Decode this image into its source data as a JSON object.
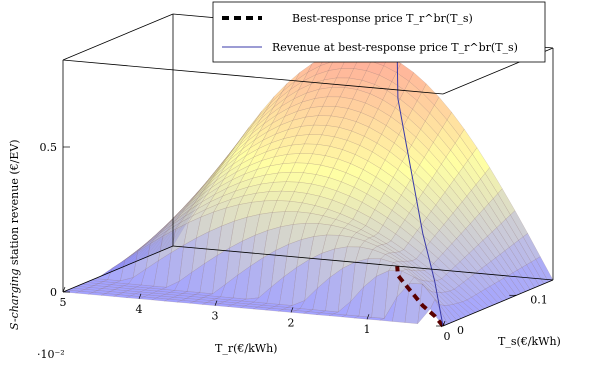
{
  "chart_data": {
    "type": "surface",
    "xlabel": "T_r(€/kWh)",
    "ylabel": "T_s(€/kWh)",
    "zlabel": "S-charging station revenue (€/EV)",
    "zlabel_italic_part": "S-charging",
    "zlabel_rest": " station revenue (€/EV)",
    "x_ticks": [
      "5",
      "4",
      "3",
      "2",
      "1",
      "0"
    ],
    "x_tick_values": [
      0.05,
      0.04,
      0.03,
      0.02,
      0.01,
      0
    ],
    "x_scale_label": "·10⁻²",
    "y_ticks": [
      "0",
      "0.1"
    ],
    "y_tick_values": [
      0,
      0.1
    ],
    "z_ticks": [
      "0",
      "0.5"
    ],
    "z_tick_values": [
      0,
      0.5
    ],
    "xlim": [
      0,
      0.05
    ],
    "ylim": [
      0,
      0.15
    ],
    "zlim": [
      0,
      0.8
    ],
    "legend": {
      "placement": "top-right",
      "entries": [
        {
          "label": "Best-response price T_r^br(T_s)",
          "style": "dashed",
          "color": "#5a0000"
        },
        {
          "label": "Revenue at best-response price T_r^br(T_s)",
          "style": "solid",
          "color": "#3a3aa8"
        }
      ]
    },
    "series": [
      {
        "name": "Best-response price T_r^br(T_s)",
        "points": [
          {
            "ts": 0.0,
            "tr": 0.0
          },
          {
            "ts": 0.025,
            "tr": 0.0035
          },
          {
            "ts": 0.05,
            "tr": 0.0075
          },
          {
            "ts": 0.075,
            "tr": 0.011
          },
          {
            "ts": 0.1,
            "tr": 0.0145
          },
          {
            "ts": 0.125,
            "tr": 0.018
          },
          {
            "ts": 0.15,
            "tr": 0.0205
          }
        ]
      },
      {
        "name": "Revenue at best-response price T_r^br(T_s)",
        "points": [
          {
            "ts": 0.0,
            "tr": 0.0,
            "z": 0.0
          },
          {
            "ts": 0.025,
            "tr": 0.0035,
            "z": 0.12
          },
          {
            "ts": 0.05,
            "tr": 0.0075,
            "z": 0.25
          },
          {
            "ts": 0.075,
            "tr": 0.011,
            "z": 0.37
          },
          {
            "ts": 0.1,
            "tr": 0.0145,
            "z": 0.49
          },
          {
            "ts": 0.125,
            "tr": 0.018,
            "z": 0.61
          },
          {
            "ts": 0.15,
            "tr": 0.0205,
            "z": 0.73
          }
        ]
      }
    ],
    "colormap": [
      "#8080ff",
      "#ffff80",
      "#ff7070"
    ],
    "grid": false
  }
}
